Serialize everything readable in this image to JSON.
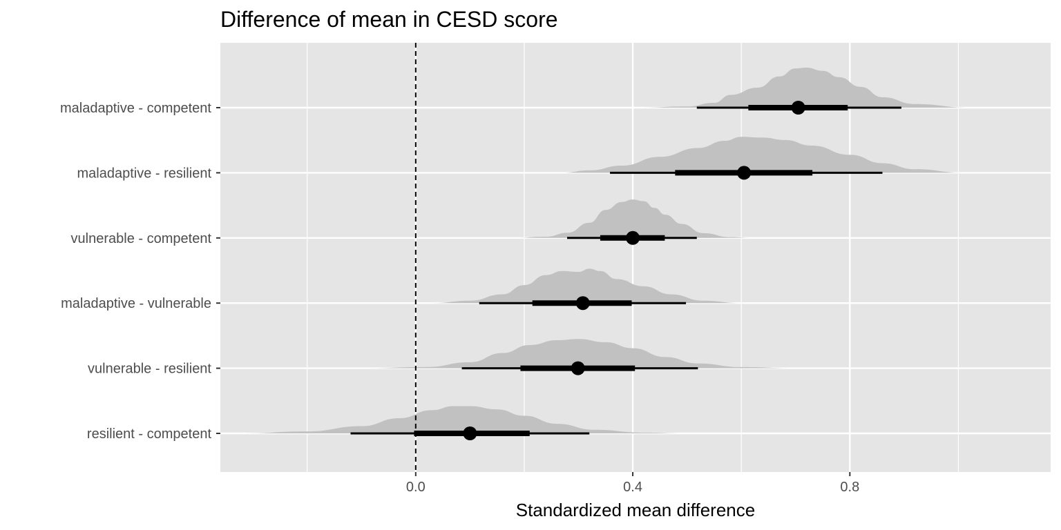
{
  "chart_data": {
    "type": "halfeye",
    "title": "Difference of mean in CESD score",
    "xlabel": "Standardized mean difference",
    "ylabel": "",
    "xlim": [
      -0.36,
      1.17
    ],
    "x_ticks": [
      0.0,
      0.4,
      0.8
    ],
    "x_tick_labels": [
      "0.0",
      "0.4",
      "0.8"
    ],
    "x_minor_ticks": [
      -0.2,
      0.2,
      0.6,
      1.0
    ],
    "reference_line": {
      "x": 0,
      "style": "dashed"
    },
    "categories": [
      "maladaptive - competent",
      "maladaptive - resilient",
      "vulnerable - competent",
      "maladaptive - vulnerable",
      "vulnerable - resilient",
      "resilient - competent"
    ],
    "series": [
      {
        "category": "maladaptive - competent",
        "median": 0.705,
        "interval_66": [
          0.613,
          0.796
        ],
        "interval_95": [
          0.518,
          0.895
        ],
        "density": [
          [
            0.41,
            0
          ],
          [
            0.5,
            0.03
          ],
          [
            0.55,
            0.12
          ],
          [
            0.58,
            0.32
          ],
          [
            0.63,
            0.5
          ],
          [
            0.67,
            0.78
          ],
          [
            0.7,
            0.98
          ],
          [
            0.72,
            1.0
          ],
          [
            0.75,
            0.92
          ],
          [
            0.78,
            0.76
          ],
          [
            0.82,
            0.52
          ],
          [
            0.86,
            0.26
          ],
          [
            0.92,
            0.09
          ],
          [
            1.02,
            0
          ]
        ]
      },
      {
        "category": "maladaptive - resilient",
        "median": 0.605,
        "interval_66": [
          0.478,
          0.731
        ],
        "interval_95": [
          0.358,
          0.86
        ],
        "density": [
          [
            0.27,
            0
          ],
          [
            0.32,
            0.06
          ],
          [
            0.38,
            0.18
          ],
          [
            0.45,
            0.4
          ],
          [
            0.52,
            0.62
          ],
          [
            0.57,
            0.8
          ],
          [
            0.6,
            0.9
          ],
          [
            0.64,
            0.88
          ],
          [
            0.68,
            0.82
          ],
          [
            0.73,
            0.68
          ],
          [
            0.8,
            0.45
          ],
          [
            0.86,
            0.24
          ],
          [
            0.92,
            0.09
          ],
          [
            1.01,
            0
          ]
        ]
      },
      {
        "category": "vulnerable - competent",
        "median": 0.4,
        "interval_66": [
          0.34,
          0.459
        ],
        "interval_95": [
          0.279,
          0.518
        ],
        "density": [
          [
            0.18,
            0
          ],
          [
            0.24,
            0.03
          ],
          [
            0.28,
            0.13
          ],
          [
            0.32,
            0.38
          ],
          [
            0.35,
            0.7
          ],
          [
            0.38,
            0.9
          ],
          [
            0.4,
            0.96
          ],
          [
            0.42,
            0.92
          ],
          [
            0.44,
            0.75
          ],
          [
            0.46,
            0.58
          ],
          [
            0.49,
            0.35
          ],
          [
            0.53,
            0.12
          ],
          [
            0.58,
            0.02
          ],
          [
            0.62,
            0
          ]
        ]
      },
      {
        "category": "maladaptive - vulnerable",
        "median": 0.308,
        "interval_66": [
          0.215,
          0.398
        ],
        "interval_95": [
          0.117,
          0.498
        ],
        "density": [
          [
            0.03,
            0
          ],
          [
            0.1,
            0.06
          ],
          [
            0.16,
            0.22
          ],
          [
            0.2,
            0.45
          ],
          [
            0.24,
            0.7
          ],
          [
            0.27,
            0.8
          ],
          [
            0.3,
            0.78
          ],
          [
            0.32,
            0.86
          ],
          [
            0.34,
            0.8
          ],
          [
            0.37,
            0.6
          ],
          [
            0.42,
            0.42
          ],
          [
            0.47,
            0.22
          ],
          [
            0.53,
            0.06
          ],
          [
            0.6,
            0
          ]
        ]
      },
      {
        "category": "vulnerable - resilient",
        "median": 0.299,
        "interval_66": [
          0.193,
          0.404
        ],
        "interval_95": [
          0.085,
          0.52
        ],
        "density": [
          [
            -0.1,
            0
          ],
          [
            0.02,
            0.03
          ],
          [
            0.1,
            0.15
          ],
          [
            0.16,
            0.38
          ],
          [
            0.21,
            0.58
          ],
          [
            0.26,
            0.7
          ],
          [
            0.3,
            0.73
          ],
          [
            0.35,
            0.65
          ],
          [
            0.4,
            0.5
          ],
          [
            0.46,
            0.28
          ],
          [
            0.52,
            0.12
          ],
          [
            0.6,
            0.03
          ],
          [
            0.7,
            0
          ]
        ]
      },
      {
        "category": "resilient - competent",
        "median": 0.1,
        "interval_66": [
          -0.003,
          0.21
        ],
        "interval_95": [
          -0.12,
          0.32
        ],
        "density": [
          [
            -0.32,
            0
          ],
          [
            -0.2,
            0.05
          ],
          [
            -0.1,
            0.18
          ],
          [
            -0.03,
            0.38
          ],
          [
            0.03,
            0.58
          ],
          [
            0.07,
            0.68
          ],
          [
            0.1,
            0.68
          ],
          [
            0.15,
            0.6
          ],
          [
            0.2,
            0.44
          ],
          [
            0.26,
            0.24
          ],
          [
            0.33,
            0.09
          ],
          [
            0.42,
            0.02
          ],
          [
            0.5,
            0
          ]
        ]
      }
    ],
    "colors": {
      "panel_bg": "#e5e5e5",
      "grid": "#ffffff",
      "density_fill": "#c1c1c1",
      "interval": "#000000"
    },
    "grid": true,
    "legend": "none"
  }
}
